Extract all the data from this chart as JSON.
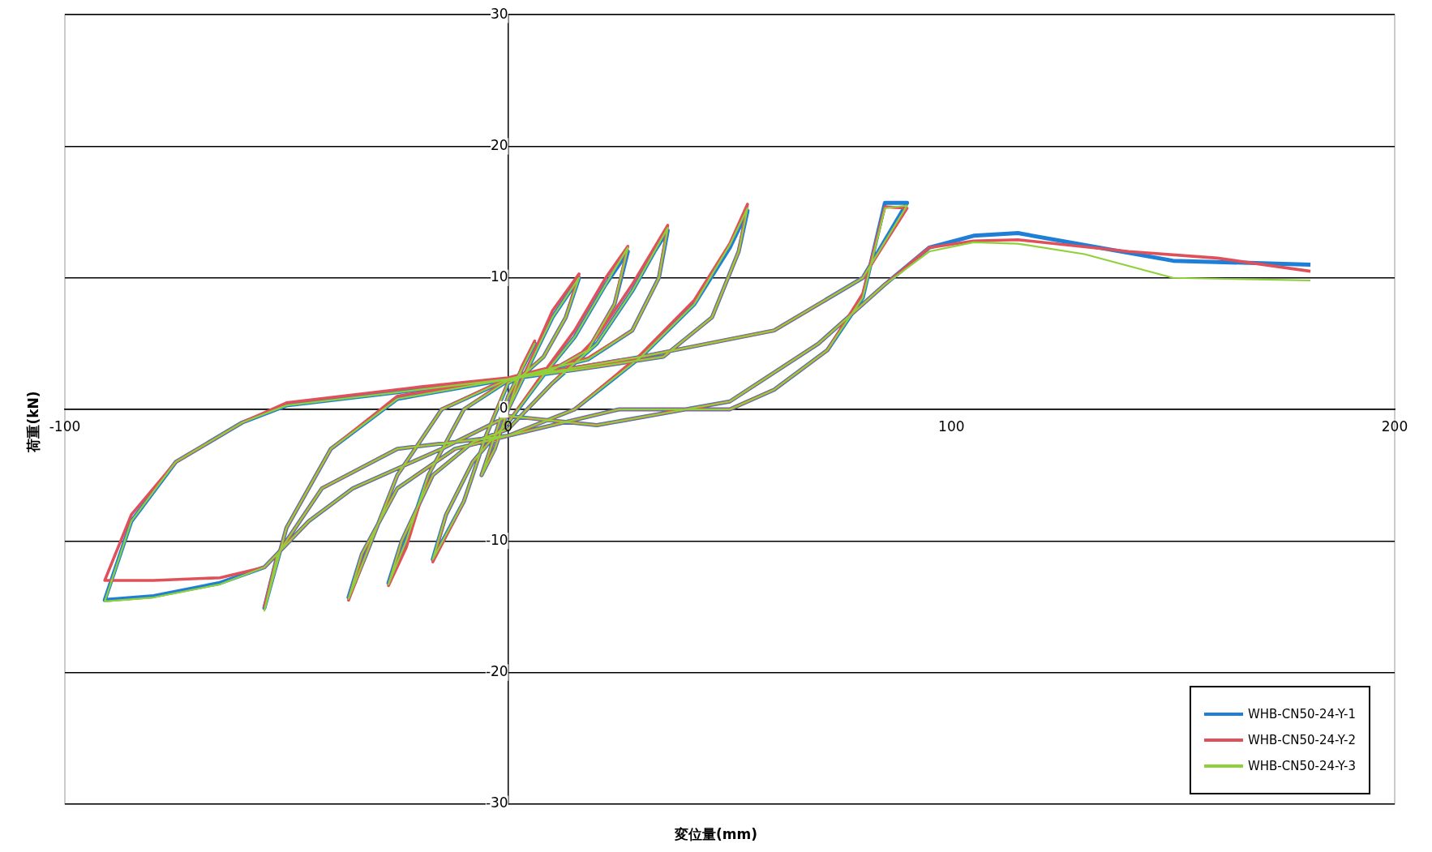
{
  "chart_data": {
    "type": "line",
    "xlabel": "変位量(mm)",
    "ylabel": "荷重(kN)",
    "xlim": [
      -100,
      200
    ],
    "ylim": [
      -30,
      30
    ],
    "xticks": [
      -100,
      0,
      100,
      200
    ],
    "yticks": [
      -30,
      -20,
      -10,
      0,
      10,
      20,
      30
    ],
    "grid": "y",
    "legend": "bottom right",
    "marker": "none",
    "line_style": "solid",
    "series": [
      {
        "name": "WHB-CN50-24-Y-1",
        "color": "#1f7fd6",
        "x": [
          0,
          3,
          6,
          3,
          0,
          -3,
          -6,
          -3,
          0,
          5,
          10,
          16,
          13,
          8,
          3,
          0,
          -5,
          -10,
          -17,
          -14,
          -8,
          -3,
          0,
          8,
          15,
          22,
          27,
          24,
          18,
          10,
          0,
          -10,
          -18,
          -23,
          -27,
          -24,
          -17,
          -8,
          0,
          10,
          20,
          28,
          33,
          36,
          34,
          28,
          18,
          0,
          -15,
          -25,
          -32,
          -36,
          -33,
          -25,
          -12,
          0,
          15,
          30,
          42,
          50,
          54,
          52,
          46,
          35,
          15,
          0,
          -25,
          -40,
          -50,
          -55,
          -52,
          -42,
          -25,
          0,
          25,
          50,
          60,
          72,
          80,
          85,
          90,
          80,
          60,
          30,
          0,
          -20,
          -50,
          -60,
          -75,
          -85,
          -91,
          -80,
          -65,
          -55,
          -45,
          -35,
          -15,
          0,
          20,
          50,
          70,
          85,
          95,
          105,
          115,
          130,
          150,
          181
        ],
        "values": [
          0,
          3,
          5,
          3,
          1,
          -2,
          -5,
          -3,
          0,
          3.5,
          7,
          10,
          7,
          4,
          2.5,
          2,
          -2,
          -7,
          -11.4,
          -8,
          -4,
          -2,
          -1,
          2.6,
          5.5,
          9.5,
          12,
          8,
          4.5,
          3,
          2.2,
          0,
          -5,
          -10,
          -13.2,
          -10,
          -5,
          -2.5,
          -1.5,
          2,
          5,
          9,
          12,
          13.6,
          10,
          6,
          3.8,
          2.3,
          0,
          -5,
          -11,
          -14.3,
          -11,
          -6,
          -3,
          -2,
          0,
          4,
          8,
          12.3,
          15.1,
          12,
          7,
          4,
          3,
          2.3,
          0.8,
          -3,
          -9,
          -15.1,
          -11,
          -6,
          -3,
          -2,
          0,
          0,
          1.5,
          4.5,
          8.5,
          15.7,
          15.7,
          10,
          6,
          4,
          2.3,
          1.5,
          0.3,
          -1,
          -4,
          -8.5,
          -14.5,
          -14.2,
          -13.2,
          -12,
          -8.5,
          -6,
          -3,
          -0.5,
          -1.2,
          0.6,
          5,
          9.5,
          12.3,
          13.2,
          13.4,
          12.5,
          11.3,
          11
        ]
      },
      {
        "name": "WHB-CN50-24-Y-2",
        "color": "#e0505a",
        "x": [
          0,
          3,
          6,
          3,
          0,
          -3,
          -6,
          -3,
          0,
          5,
          10,
          16,
          13,
          8,
          3,
          0,
          -5,
          -10,
          -17,
          -14,
          -8,
          -3,
          0,
          8,
          15,
          22,
          27,
          24,
          18,
          10,
          0,
          -10,
          -18,
          -23,
          -27,
          -24,
          -17,
          -8,
          0,
          10,
          20,
          28,
          33,
          36,
          34,
          28,
          18,
          0,
          -15,
          -25,
          -32,
          -36,
          -33,
          -25,
          -12,
          0,
          15,
          30,
          42,
          50,
          54,
          52,
          46,
          35,
          15,
          0,
          -25,
          -40,
          -50,
          -55,
          -52,
          -42,
          -25,
          0,
          25,
          50,
          60,
          72,
          80,
          85,
          90,
          80,
          60,
          30,
          0,
          -20,
          -50,
          -60,
          -75,
          -85,
          -91,
          -80,
          -65,
          -55,
          -45,
          -35,
          -15,
          0,
          20,
          50,
          70,
          85,
          95,
          105,
          115,
          140,
          160,
          181
        ],
        "values": [
          0,
          3.2,
          5.2,
          3,
          1,
          -2,
          -5,
          -3,
          0,
          3.7,
          7.5,
          10.3,
          7,
          4,
          2.6,
          2.1,
          -2,
          -7,
          -11.6,
          -8,
          -4,
          -2,
          -1,
          2.8,
          6,
          10,
          12.4,
          8,
          4.6,
          3,
          2.3,
          0,
          -5,
          -10.5,
          -13.4,
          -10,
          -5,
          -2.5,
          -1.5,
          2,
          5.5,
          9.5,
          12.3,
          14,
          10,
          6,
          3.9,
          2.4,
          0,
          -5,
          -11,
          -14.5,
          -11,
          -6,
          -3,
          -2,
          0,
          4.2,
          8.3,
          12.6,
          15.6,
          12,
          7,
          4,
          3,
          2.4,
          1,
          -3,
          -9,
          -15,
          -11,
          -6,
          -3,
          -2,
          0,
          0,
          1.5,
          4.5,
          8.8,
          15.4,
          15.3,
          10,
          6,
          4,
          2.4,
          1.7,
          0.5,
          -1,
          -4,
          -8,
          -13,
          -13,
          -12.8,
          -12,
          -8.5,
          -6,
          -3,
          -0.5,
          -1.2,
          0.6,
          5,
          9.5,
          12.3,
          12.8,
          12.9,
          12,
          11.5,
          10.5
        ]
      },
      {
        "name": "WHB-CN50-24-Y-3",
        "color": "#8fd13a",
        "x": [
          0,
          3,
          6,
          3,
          0,
          -3,
          -6,
          -3,
          0,
          5,
          10,
          16,
          13,
          8,
          3,
          0,
          -5,
          -10,
          -17,
          -14,
          -8,
          -3,
          0,
          8,
          15,
          22,
          27,
          24,
          18,
          10,
          0,
          -10,
          -18,
          -23,
          -27,
          -24,
          -17,
          -8,
          0,
          10,
          20,
          28,
          33,
          36,
          34,
          28,
          18,
          0,
          -15,
          -25,
          -32,
          -36,
          -33,
          -25,
          -12,
          0,
          15,
          30,
          42,
          50,
          54,
          52,
          46,
          35,
          15,
          0,
          -25,
          -40,
          -50,
          -55,
          -52,
          -42,
          -25,
          0,
          25,
          50,
          60,
          72,
          80,
          85,
          90,
          80,
          60,
          30,
          0,
          -20,
          -50,
          -60,
          -75,
          -85,
          -91,
          -80,
          -65,
          -55,
          -45,
          -35,
          -15,
          0,
          20,
          50,
          70,
          85,
          95,
          105,
          115,
          130,
          150,
          181
        ],
        "values": [
          0,
          3,
          5,
          3,
          1,
          -2,
          -5,
          -3,
          0,
          3.5,
          7,
          10,
          7,
          4,
          2.5,
          2,
          -2,
          -7,
          -11.4,
          -8,
          -4,
          -2,
          -1,
          2.6,
          5.5,
          9.5,
          12.3,
          8,
          4.5,
          3,
          2.2,
          0,
          -5,
          -10,
          -13.3,
          -10,
          -5,
          -2.5,
          -1.5,
          2,
          5,
          9,
          12,
          13.8,
          10,
          6,
          3.8,
          2.3,
          0,
          -5,
          -11,
          -14.4,
          -11,
          -6,
          -3,
          -2,
          0,
          4,
          8,
          12.5,
          15.3,
          12,
          7,
          4,
          3,
          2.3,
          0.8,
          -3,
          -9,
          -15.3,
          -11,
          -6,
          -3,
          -2,
          0,
          0,
          1.5,
          4.5,
          8.5,
          15.3,
          15.5,
          10,
          6,
          4,
          2.3,
          1.5,
          0.3,
          -1,
          -4,
          -8.5,
          -14.6,
          -14.3,
          -13.3,
          -12,
          -8.5,
          -6,
          -3,
          -0.5,
          -1.2,
          0.6,
          5,
          9.5,
          12,
          12.7,
          12.6,
          11.8,
          10,
          9.8
        ]
      }
    ]
  }
}
